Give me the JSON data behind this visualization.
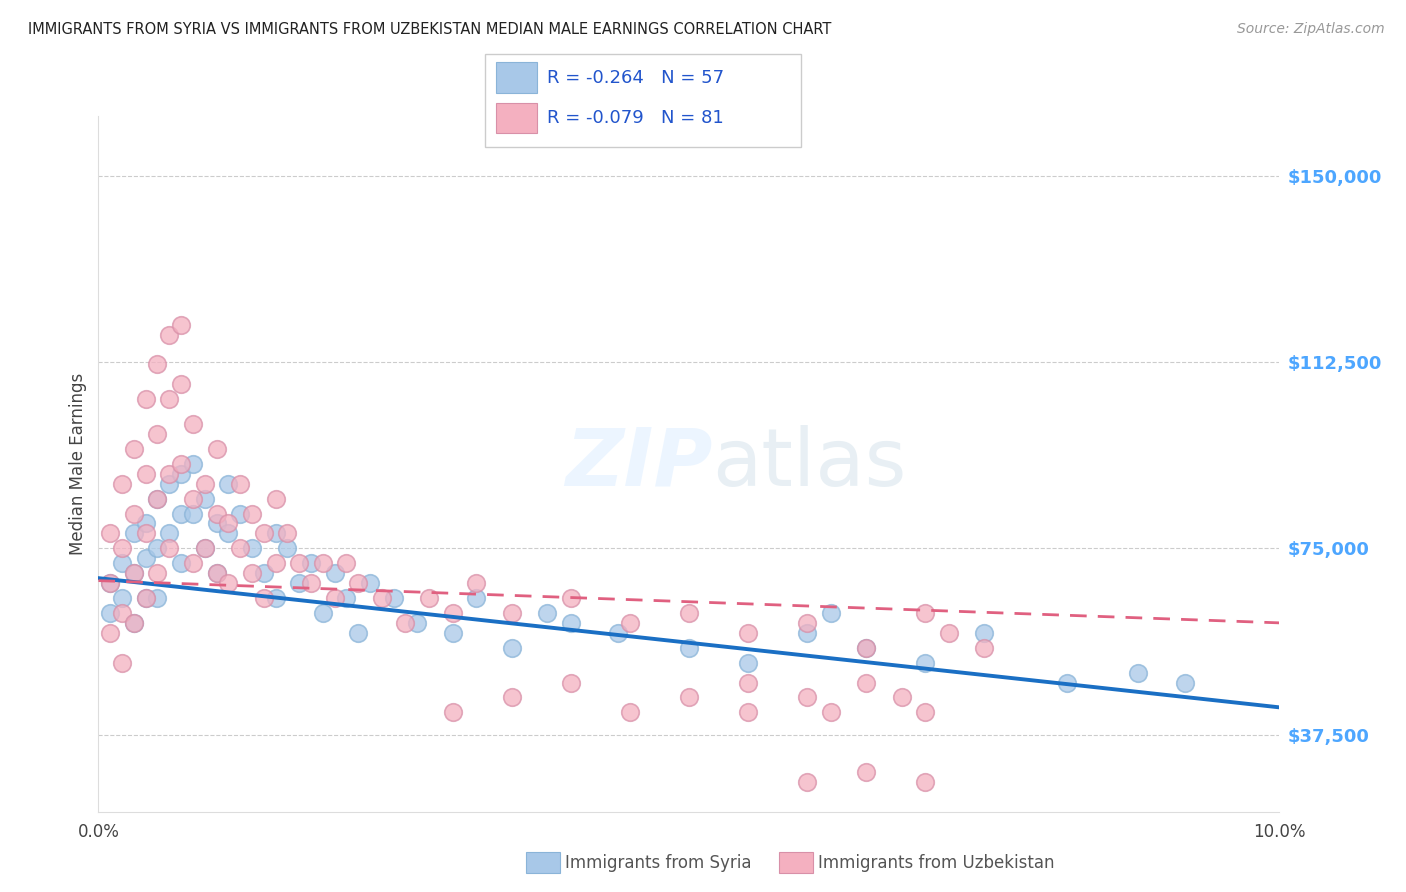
{
  "title": "IMMIGRANTS FROM SYRIA VS IMMIGRANTS FROM UZBEKISTAN MEDIAN MALE EARNINGS CORRELATION CHART",
  "source": "Source: ZipAtlas.com",
  "ylabel": "Median Male Earnings",
  "yticks": [
    37500,
    75000,
    112500,
    150000
  ],
  "ytick_labels": [
    "$37,500",
    "$75,000",
    "$112,500",
    "$150,000"
  ],
  "xlim": [
    0.0,
    0.1
  ],
  "ylim": [
    22000,
    162000
  ],
  "background_color": "#ffffff",
  "grid_color": "#cccccc",
  "syria_color": "#a8c8e8",
  "uzbekistan_color": "#f4b0c0",
  "syria_line_color": "#1a6fc4",
  "uzbekistan_line_color": "#e06080",
  "legend_R_color": "#2255cc",
  "legend_N_color": "#2255cc",
  "ytick_color": "#4da6ff",
  "legend_syria_R": "-0.264",
  "legend_syria_N": "57",
  "legend_uzbekistan_R": "-0.079",
  "legend_uzbekistan_N": "81",
  "syria_scatter_x": [
    0.001,
    0.001,
    0.002,
    0.002,
    0.003,
    0.003,
    0.003,
    0.004,
    0.004,
    0.004,
    0.005,
    0.005,
    0.005,
    0.006,
    0.006,
    0.007,
    0.007,
    0.007,
    0.008,
    0.008,
    0.009,
    0.009,
    0.01,
    0.01,
    0.011,
    0.011,
    0.012,
    0.013,
    0.014,
    0.015,
    0.015,
    0.016,
    0.017,
    0.018,
    0.019,
    0.02,
    0.021,
    0.022,
    0.023,
    0.025,
    0.027,
    0.03,
    0.032,
    0.035,
    0.038,
    0.04,
    0.044,
    0.05,
    0.055,
    0.06,
    0.062,
    0.065,
    0.07,
    0.075,
    0.082,
    0.088,
    0.092
  ],
  "syria_scatter_y": [
    68000,
    62000,
    72000,
    65000,
    78000,
    70000,
    60000,
    80000,
    73000,
    65000,
    85000,
    75000,
    65000,
    88000,
    78000,
    90000,
    82000,
    72000,
    92000,
    82000,
    85000,
    75000,
    80000,
    70000,
    88000,
    78000,
    82000,
    75000,
    70000,
    78000,
    65000,
    75000,
    68000,
    72000,
    62000,
    70000,
    65000,
    58000,
    68000,
    65000,
    60000,
    58000,
    65000,
    55000,
    62000,
    60000,
    58000,
    55000,
    52000,
    58000,
    62000,
    55000,
    52000,
    58000,
    48000,
    50000,
    48000
  ],
  "uzbekistan_scatter_x": [
    0.001,
    0.001,
    0.001,
    0.002,
    0.002,
    0.002,
    0.002,
    0.003,
    0.003,
    0.003,
    0.003,
    0.004,
    0.004,
    0.004,
    0.004,
    0.005,
    0.005,
    0.005,
    0.005,
    0.006,
    0.006,
    0.006,
    0.006,
    0.007,
    0.007,
    0.007,
    0.008,
    0.008,
    0.008,
    0.009,
    0.009,
    0.01,
    0.01,
    0.01,
    0.011,
    0.011,
    0.012,
    0.012,
    0.013,
    0.013,
    0.014,
    0.014,
    0.015,
    0.015,
    0.016,
    0.017,
    0.018,
    0.019,
    0.02,
    0.021,
    0.022,
    0.024,
    0.026,
    0.028,
    0.03,
    0.032,
    0.035,
    0.04,
    0.045,
    0.05,
    0.055,
    0.06,
    0.065,
    0.07,
    0.072,
    0.075,
    0.03,
    0.035,
    0.04,
    0.045,
    0.05,
    0.055,
    0.06,
    0.065,
    0.07,
    0.055,
    0.06,
    0.062,
    0.065,
    0.068,
    0.07
  ],
  "uzbekistan_scatter_y": [
    78000,
    68000,
    58000,
    88000,
    75000,
    62000,
    52000,
    95000,
    82000,
    70000,
    60000,
    105000,
    90000,
    78000,
    65000,
    112000,
    98000,
    85000,
    70000,
    118000,
    105000,
    90000,
    75000,
    120000,
    108000,
    92000,
    100000,
    85000,
    72000,
    88000,
    75000,
    95000,
    82000,
    70000,
    80000,
    68000,
    88000,
    75000,
    82000,
    70000,
    78000,
    65000,
    85000,
    72000,
    78000,
    72000,
    68000,
    72000,
    65000,
    72000,
    68000,
    65000,
    60000,
    65000,
    62000,
    68000,
    62000,
    65000,
    60000,
    62000,
    58000,
    60000,
    55000,
    62000,
    58000,
    55000,
    42000,
    45000,
    48000,
    42000,
    45000,
    42000,
    28000,
    30000,
    28000,
    48000,
    45000,
    42000,
    48000,
    45000,
    42000
  ],
  "syria_trend_x": [
    0.0,
    0.1
  ],
  "syria_trend_y": [
    69000,
    43000
  ],
  "uzbekistan_trend_x": [
    0.0,
    0.1
  ],
  "uzbekistan_trend_y": [
    68500,
    60000
  ]
}
